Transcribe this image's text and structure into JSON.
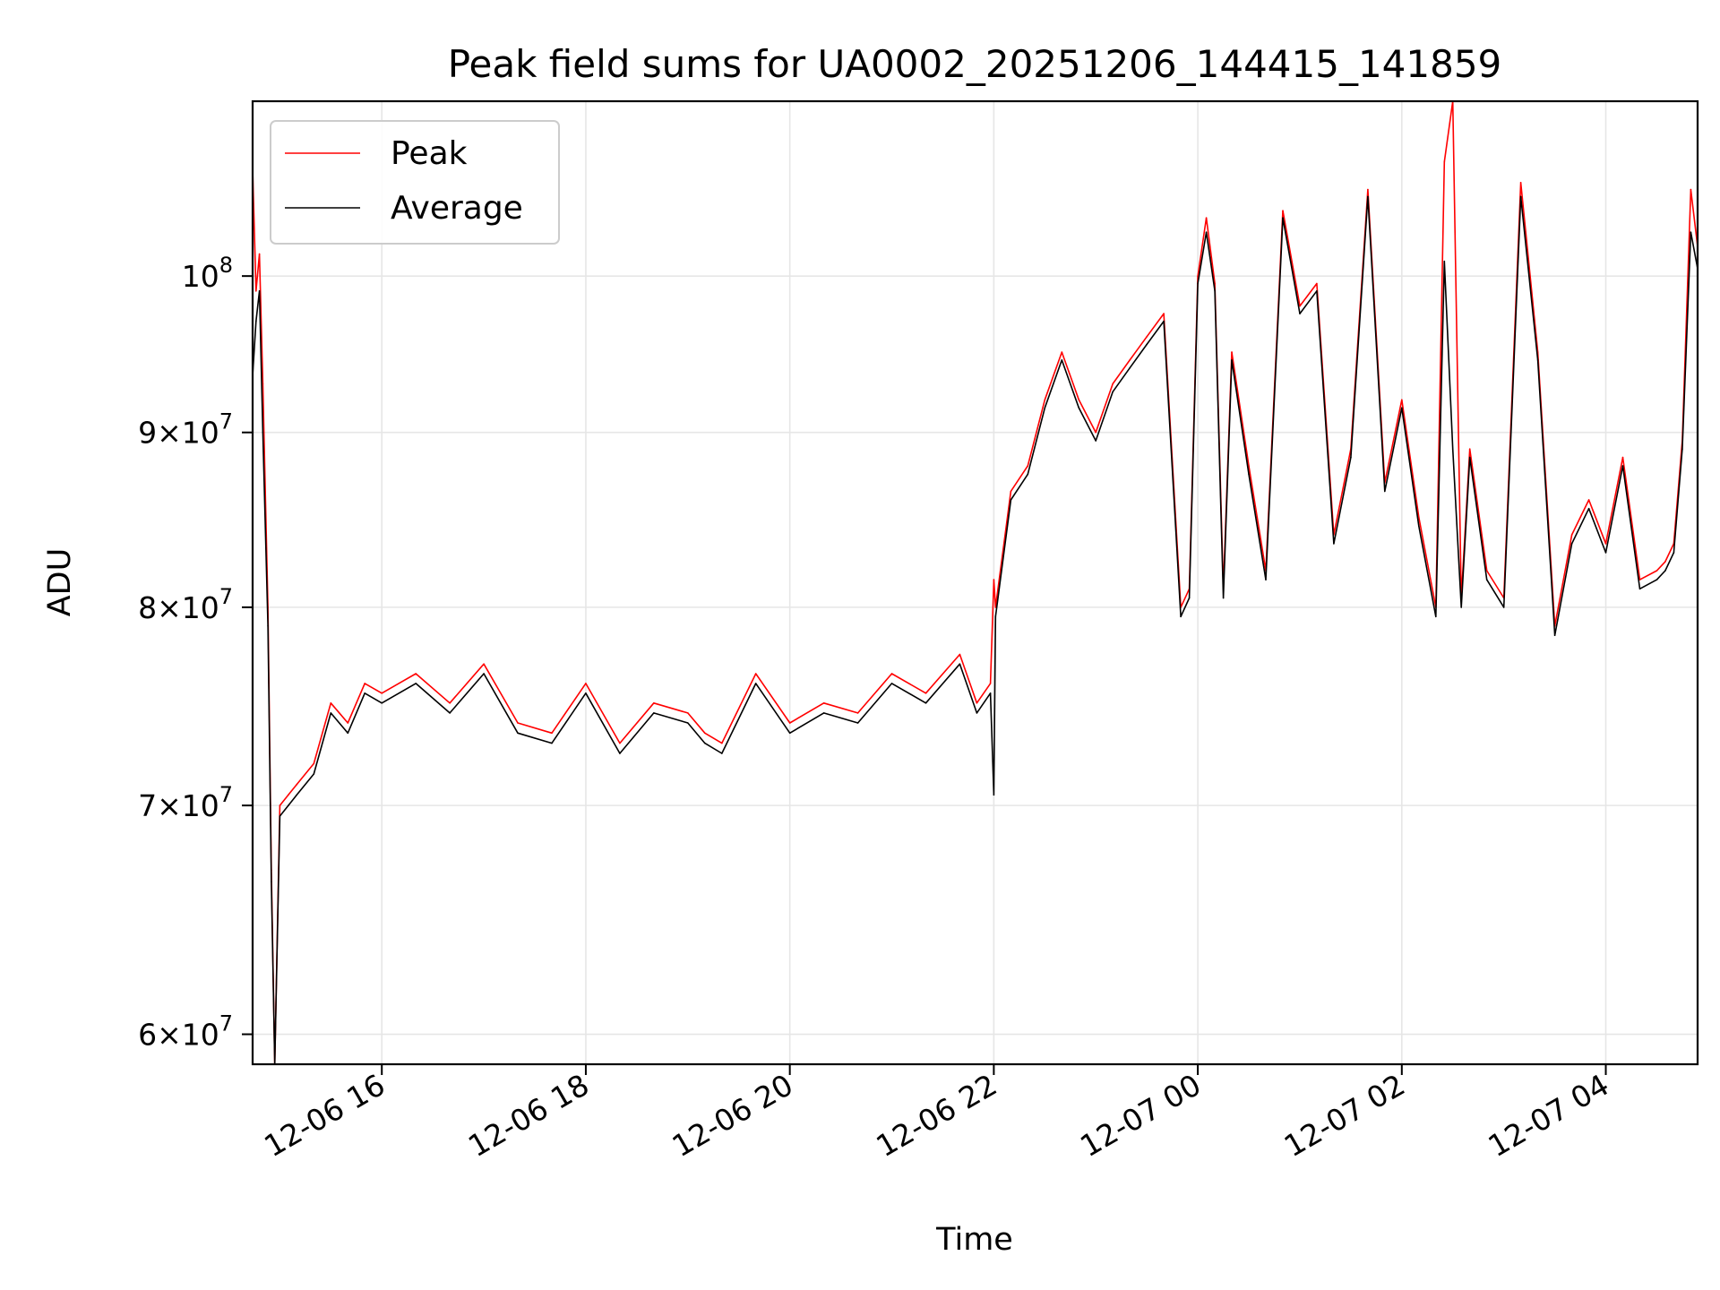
{
  "chart_data": {
    "type": "line",
    "title": "Peak field sums for UA0002_20251206_144415_141859",
    "xlabel": "Time",
    "ylabel": "ADU",
    "y_scale": "log",
    "grid": true,
    "legend_position": "top-left",
    "xlim": [
      "2025-12-06 14:44",
      "2025-12-07 04:54"
    ],
    "ylim": [
      58800000,
      112500000
    ],
    "x_ticks": [
      {
        "value": "2025-12-06 16:00",
        "label": "12-06 16"
      },
      {
        "value": "2025-12-06 18:00",
        "label": "12-06 18"
      },
      {
        "value": "2025-12-06 20:00",
        "label": "12-06 20"
      },
      {
        "value": "2025-12-06 22:00",
        "label": "12-06 22"
      },
      {
        "value": "2025-12-07 00:00",
        "label": "12-07 00"
      },
      {
        "value": "2025-12-07 02:00",
        "label": "12-07 02"
      },
      {
        "value": "2025-12-07 04:00",
        "label": "12-07 04"
      }
    ],
    "y_ticks": [
      {
        "value": 60000000,
        "mantissa": "6",
        "exponent": "7"
      },
      {
        "value": 70000000,
        "mantissa": "7",
        "exponent": "7"
      },
      {
        "value": 80000000,
        "mantissa": "8",
        "exponent": "7"
      },
      {
        "value": 90000000,
        "mantissa": "9",
        "exponent": "7"
      },
      {
        "value": 100000000,
        "mantissa": "",
        "exponent": "8"
      }
    ],
    "series": [
      {
        "name": "Peak",
        "color": "#ff0000",
        "x": [
          "2025-12-06 14:44",
          "2025-12-06 14:46",
          "2025-12-06 14:48",
          "2025-12-06 14:50",
          "2025-12-06 14:53",
          "2025-12-06 14:55",
          "2025-12-06 14:57",
          "2025-12-06 15:00",
          "2025-12-06 15:05",
          "2025-12-06 15:10",
          "2025-12-06 15:20",
          "2025-12-06 15:30",
          "2025-12-06 15:40",
          "2025-12-06 15:50",
          "2025-12-06 16:00",
          "2025-12-06 16:20",
          "2025-12-06 16:40",
          "2025-12-06 17:00",
          "2025-12-06 17:20",
          "2025-12-06 17:40",
          "2025-12-06 18:00",
          "2025-12-06 18:20",
          "2025-12-06 18:40",
          "2025-12-06 19:00",
          "2025-12-06 19:10",
          "2025-12-06 19:20",
          "2025-12-06 19:40",
          "2025-12-06 20:00",
          "2025-12-06 20:20",
          "2025-12-06 20:40",
          "2025-12-06 21:00",
          "2025-12-06 21:20",
          "2025-12-06 21:40",
          "2025-12-06 21:50",
          "2025-12-06 21:58",
          "2025-12-06 22:00",
          "2025-12-06 22:01",
          "2025-12-06 22:10",
          "2025-12-06 22:20",
          "2025-12-06 22:30",
          "2025-12-06 22:40",
          "2025-12-06 22:50",
          "2025-12-06 23:00",
          "2025-12-06 23:10",
          "2025-12-06 23:20",
          "2025-12-06 23:30",
          "2025-12-06 23:40",
          "2025-12-06 23:50",
          "2025-12-06 23:55",
          "2025-12-07 00:00",
          "2025-12-07 00:05",
          "2025-12-07 00:10",
          "2025-12-07 00:15",
          "2025-12-07 00:20",
          "2025-12-07 00:30",
          "2025-12-07 00:40",
          "2025-12-07 00:50",
          "2025-12-07 01:00",
          "2025-12-07 01:10",
          "2025-12-07 01:20",
          "2025-12-07 01:30",
          "2025-12-07 01:40",
          "2025-12-07 01:50",
          "2025-12-07 02:00",
          "2025-12-07 02:10",
          "2025-12-07 02:20",
          "2025-12-07 02:25",
          "2025-12-07 02:30",
          "2025-12-07 02:35",
          "2025-12-07 02:40",
          "2025-12-07 02:50",
          "2025-12-07 03:00",
          "2025-12-07 03:10",
          "2025-12-07 03:20",
          "2025-12-07 03:30",
          "2025-12-07 03:40",
          "2025-12-07 03:50",
          "2025-12-07 04:00",
          "2025-12-07 04:10",
          "2025-12-07 04:20",
          "2025-12-07 04:30",
          "2025-12-07 04:35",
          "2025-12-07 04:40",
          "2025-12-07 04:45",
          "2025-12-07 04:50",
          "2025-12-07 04:54"
        ],
        "values": [
          107500000,
          99000000,
          101500000,
          93000000,
          80000000,
          67000000,
          58800000,
          70000000,
          70500000,
          71000000,
          72000000,
          75000000,
          74000000,
          76000000,
          75500000,
          76500000,
          75000000,
          77000000,
          74000000,
          73500000,
          76000000,
          73000000,
          75000000,
          74500000,
          73500000,
          73000000,
          76500000,
          74000000,
          75000000,
          74500000,
          76500000,
          75500000,
          77500000,
          75000000,
          76000000,
          81500000,
          80000000,
          86500000,
          88000000,
          92000000,
          95000000,
          92000000,
          90000000,
          93000000,
          94500000,
          96000000,
          97500000,
          80000000,
          81000000,
          100000000,
          104000000,
          99500000,
          81000000,
          95000000,
          88000000,
          82000000,
          104500000,
          98000000,
          99500000,
          84000000,
          89000000,
          106000000,
          87000000,
          92000000,
          85000000,
          80000000,
          108000000,
          112500000,
          80500000,
          89000000,
          82000000,
          80500000,
          106500000,
          95000000,
          79000000,
          84000000,
          86000000,
          83500000,
          88500000,
          81500000,
          82000000,
          82500000,
          83500000,
          89500000,
          106000000,
          102000000
        ]
      },
      {
        "name": "Average",
        "color": "#000000",
        "x": [
          "2025-12-06 14:44",
          "2025-12-06 14:46",
          "2025-12-06 14:48",
          "2025-12-06 14:50",
          "2025-12-06 14:53",
          "2025-12-06 14:55",
          "2025-12-06 14:57",
          "2025-12-06 15:00",
          "2025-12-06 15:05",
          "2025-12-06 15:10",
          "2025-12-06 15:20",
          "2025-12-06 15:30",
          "2025-12-06 15:40",
          "2025-12-06 15:50",
          "2025-12-06 16:00",
          "2025-12-06 16:20",
          "2025-12-06 16:40",
          "2025-12-06 17:00",
          "2025-12-06 17:20",
          "2025-12-06 17:40",
          "2025-12-06 18:00",
          "2025-12-06 18:20",
          "2025-12-06 18:40",
          "2025-12-06 19:00",
          "2025-12-06 19:10",
          "2025-12-06 19:20",
          "2025-12-06 19:40",
          "2025-12-06 20:00",
          "2025-12-06 20:20",
          "2025-12-06 20:40",
          "2025-12-06 21:00",
          "2025-12-06 21:20",
          "2025-12-06 21:40",
          "2025-12-06 21:50",
          "2025-12-06 21:58",
          "2025-12-06 22:00",
          "2025-12-06 22:01",
          "2025-12-06 22:10",
          "2025-12-06 22:20",
          "2025-12-06 22:30",
          "2025-12-06 22:40",
          "2025-12-06 22:50",
          "2025-12-06 23:00",
          "2025-12-06 23:10",
          "2025-12-06 23:20",
          "2025-12-06 23:30",
          "2025-12-06 23:40",
          "2025-12-06 23:50",
          "2025-12-06 23:55",
          "2025-12-07 00:00",
          "2025-12-07 00:05",
          "2025-12-07 00:10",
          "2025-12-07 00:15",
          "2025-12-07 00:20",
          "2025-12-07 00:30",
          "2025-12-07 00:40",
          "2025-12-07 00:50",
          "2025-12-07 01:00",
          "2025-12-07 01:10",
          "2025-12-07 01:20",
          "2025-12-07 01:30",
          "2025-12-07 01:40",
          "2025-12-07 01:50",
          "2025-12-07 02:00",
          "2025-12-07 02:10",
          "2025-12-07 02:20",
          "2025-12-07 02:25",
          "2025-12-07 02:30",
          "2025-12-07 02:35",
          "2025-12-07 02:40",
          "2025-12-07 02:50",
          "2025-12-07 03:00",
          "2025-12-07 03:10",
          "2025-12-07 03:20",
          "2025-12-07 03:30",
          "2025-12-07 03:40",
          "2025-12-07 03:50",
          "2025-12-07 04:00",
          "2025-12-07 04:10",
          "2025-12-07 04:20",
          "2025-12-07 04:30",
          "2025-12-07 04:35",
          "2025-12-07 04:40",
          "2025-12-07 04:45",
          "2025-12-07 04:50",
          "2025-12-07 04:54"
        ],
        "values": [
          93500000,
          97000000,
          99000000,
          90000000,
          79000000,
          66500000,
          58800000,
          69500000,
          70000000,
          70500000,
          71500000,
          74500000,
          73500000,
          75500000,
          75000000,
          76000000,
          74500000,
          76500000,
          73500000,
          73000000,
          75500000,
          72500000,
          74500000,
          74000000,
          73000000,
          72500000,
          76000000,
          73500000,
          74500000,
          74000000,
          76000000,
          75000000,
          77000000,
          74500000,
          75500000,
          70500000,
          79500000,
          86000000,
          87500000,
          91500000,
          94500000,
          91500000,
          89500000,
          92500000,
          94000000,
          95500000,
          97000000,
          79500000,
          80500000,
          99500000,
          103000000,
          99000000,
          80500000,
          94500000,
          87500000,
          81500000,
          104000000,
          97500000,
          99000000,
          83500000,
          88500000,
          105500000,
          86500000,
          91500000,
          84500000,
          79500000,
          101000000,
          89000000,
          80000000,
          88500000,
          81500000,
          80000000,
          105500000,
          94500000,
          78500000,
          83500000,
          85500000,
          83000000,
          88000000,
          81000000,
          81500000,
          82000000,
          83000000,
          89000000,
          103000000,
          100500000
        ]
      }
    ]
  }
}
